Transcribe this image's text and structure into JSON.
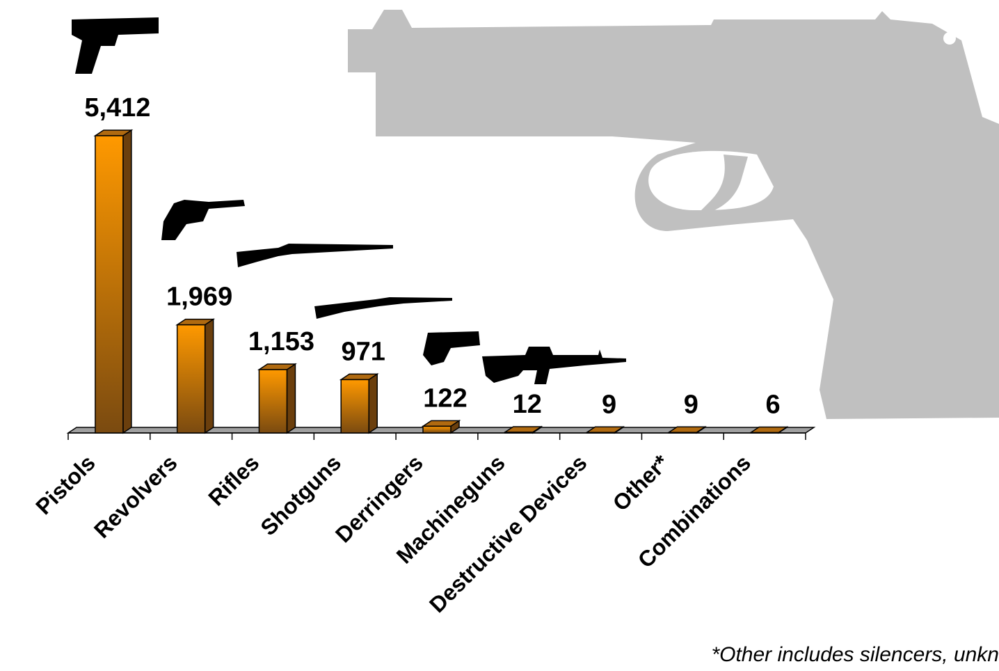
{
  "chart_data": {
    "type": "bar",
    "categories": [
      "Pistols",
      "Revolvers",
      "Rifles",
      "Shotguns",
      "Derringers",
      "Machineguns",
      "Destructive Devices",
      "Other*",
      "Combinations"
    ],
    "values": [
      5412,
      1969,
      1153,
      971,
      122,
      12,
      9,
      9,
      6
    ],
    "value_labels": [
      "5,412",
      "1,969",
      "1,153",
      "971",
      "122",
      "12",
      "9",
      "9",
      "6"
    ],
    "color": "#ff9900",
    "footnote": "*Other includes silencers, unkn"
  }
}
